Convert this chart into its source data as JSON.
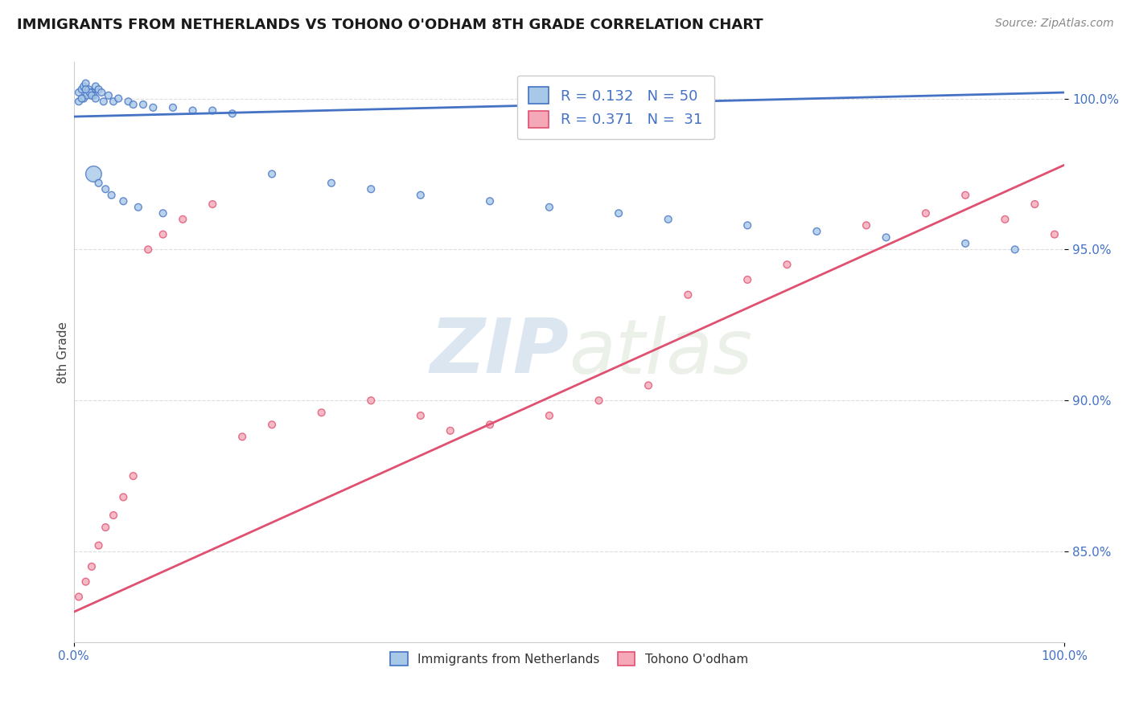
{
  "title": "IMMIGRANTS FROM NETHERLANDS VS TOHONO O'ODHAM 8TH GRADE CORRELATION CHART",
  "source_text": "Source: ZipAtlas.com",
  "ylabel": "8th Grade",
  "xmin": 0.0,
  "xmax": 1.0,
  "ymin": 0.82,
  "ymax": 1.012,
  "yticks": [
    0.85,
    0.9,
    0.95,
    1.0
  ],
  "ytick_labels": [
    "85.0%",
    "90.0%",
    "95.0%",
    "100.0%"
  ],
  "blue_R": 0.132,
  "blue_N": 50,
  "pink_R": 0.371,
  "pink_N": 31,
  "blue_color": "#a8c8e8",
  "pink_color": "#f4a8b8",
  "blue_line_color": "#4472c4",
  "pink_line_color": "#e05070",
  "legend_label_blue": "Immigrants from Netherlands",
  "legend_label_pink": "Tohono O'odham",
  "watermark_zip": "ZIP",
  "watermark_atlas": "atlas",
  "background_color": "#ffffff",
  "grid_color": "#dddddd",
  "blue_line_x0": 0.0,
  "blue_line_x1": 1.0,
  "blue_line_y0": 0.994,
  "blue_line_y1": 1.002,
  "pink_line_x0": 0.0,
  "pink_line_x1": 1.0,
  "pink_line_y0": 0.83,
  "pink_line_y1": 0.978,
  "blue_scatter_x": [
    0.005,
    0.008,
    0.01,
    0.012,
    0.015,
    0.018,
    0.02,
    0.022,
    0.025,
    0.028,
    0.01,
    0.013,
    0.016,
    0.005,
    0.008,
    0.012,
    0.018,
    0.022,
    0.03,
    0.035,
    0.04,
    0.045,
    0.055,
    0.06,
    0.07,
    0.08,
    0.1,
    0.12,
    0.14,
    0.16,
    0.02,
    0.025,
    0.032,
    0.038,
    0.05,
    0.065,
    0.09,
    0.2,
    0.26,
    0.3,
    0.35,
    0.42,
    0.48,
    0.55,
    0.6,
    0.68,
    0.75,
    0.82,
    0.9,
    0.95
  ],
  "blue_scatter_y": [
    1.002,
    1.003,
    1.004,
    1.005,
    1.003,
    1.002,
    1.001,
    1.004,
    1.003,
    1.002,
    1.0,
    1.001,
    1.002,
    0.999,
    1.0,
    1.003,
    1.001,
    1.0,
    0.999,
    1.001,
    0.999,
    1.0,
    0.999,
    0.998,
    0.998,
    0.997,
    0.997,
    0.996,
    0.996,
    0.995,
    0.975,
    0.972,
    0.97,
    0.968,
    0.966,
    0.964,
    0.962,
    0.975,
    0.972,
    0.97,
    0.968,
    0.966,
    0.964,
    0.962,
    0.96,
    0.958,
    0.956,
    0.954,
    0.952,
    0.95
  ],
  "blue_scatter_sizes": [
    40,
    40,
    40,
    40,
    40,
    40,
    40,
    40,
    40,
    40,
    40,
    40,
    40,
    40,
    40,
    40,
    40,
    40,
    40,
    40,
    40,
    40,
    40,
    40,
    40,
    40,
    40,
    40,
    40,
    40,
    200,
    40,
    40,
    40,
    40,
    40,
    40,
    40,
    40,
    40,
    40,
    40,
    40,
    40,
    40,
    40,
    40,
    40,
    40,
    40
  ],
  "pink_scatter_x": [
    0.005,
    0.012,
    0.018,
    0.025,
    0.032,
    0.04,
    0.05,
    0.06,
    0.075,
    0.09,
    0.11,
    0.14,
    0.17,
    0.2,
    0.25,
    0.3,
    0.35,
    0.38,
    0.42,
    0.48,
    0.53,
    0.58,
    0.62,
    0.68,
    0.72,
    0.8,
    0.86,
    0.9,
    0.94,
    0.97,
    0.99
  ],
  "pink_scatter_y": [
    0.835,
    0.84,
    0.845,
    0.852,
    0.858,
    0.862,
    0.868,
    0.875,
    0.95,
    0.955,
    0.96,
    0.965,
    0.888,
    0.892,
    0.896,
    0.9,
    0.895,
    0.89,
    0.892,
    0.895,
    0.9,
    0.905,
    0.935,
    0.94,
    0.945,
    0.958,
    0.962,
    0.968,
    0.96,
    0.965,
    0.955
  ],
  "pink_scatter_sizes": [
    40,
    40,
    40,
    40,
    40,
    40,
    40,
    40,
    40,
    40,
    40,
    40,
    40,
    40,
    40,
    40,
    40,
    40,
    40,
    40,
    40,
    40,
    40,
    40,
    40,
    40,
    40,
    40,
    40,
    40,
    40
  ]
}
